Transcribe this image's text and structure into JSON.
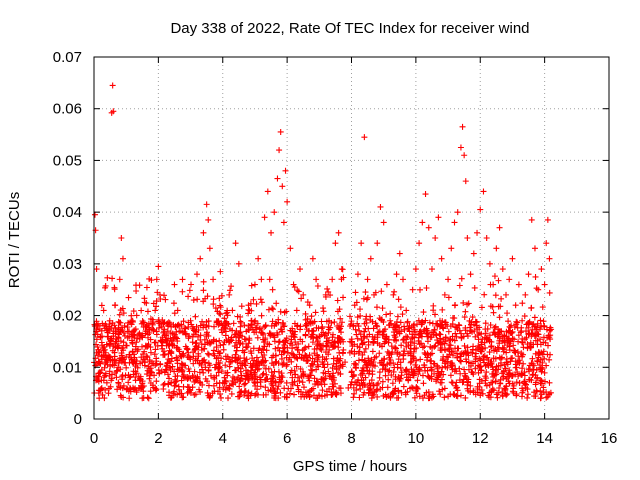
{
  "chart_data": {
    "type": "scatter",
    "title": "Day 338 of 2022, Rate Of TEC Index for receiver wind",
    "xlabel": "GPS time / hours",
    "ylabel": "ROTI / TECUs",
    "xlim": [
      0,
      16
    ],
    "ylim": [
      0,
      0.07
    ],
    "xticks": [
      0,
      2,
      4,
      6,
      8,
      10,
      12,
      14,
      16
    ],
    "yticks": [
      0,
      0.01,
      0.02,
      0.03,
      0.04,
      0.05,
      0.06,
      0.07
    ],
    "xtick_labels": [
      "0",
      "2",
      "4",
      "6",
      "8",
      "10",
      "12",
      "14",
      "16"
    ],
    "ytick_labels": [
      "0",
      "0.01",
      "0.02",
      "0.03",
      "0.04",
      "0.05",
      "0.06",
      "0.07"
    ],
    "grid": true,
    "marker": "+",
    "color": "#ff0000",
    "points": [
      [
        0.03,
        0.0395
      ],
      [
        0.05,
        0.0365
      ],
      [
        0.08,
        0.029
      ],
      [
        0.1,
        0.018
      ],
      [
        0.15,
        0.013
      ],
      [
        0.2,
        0.009
      ],
      [
        0.25,
        0.016
      ],
      [
        0.3,
        0.021
      ],
      [
        0.35,
        0.011
      ],
      [
        0.4,
        0.007
      ],
      [
        0.45,
        0.005
      ],
      [
        0.5,
        0.012
      ],
      [
        0.55,
        0.0592
      ],
      [
        0.58,
        0.0645
      ],
      [
        0.6,
        0.0595
      ],
      [
        0.65,
        0.022
      ],
      [
        0.7,
        0.015
      ],
      [
        0.75,
        0.01
      ],
      [
        0.8,
        0.027
      ],
      [
        0.85,
        0.035
      ],
      [
        0.9,
        0.031
      ],
      [
        0.95,
        0.018
      ],
      [
        1.0,
        0.012
      ],
      [
        1.1,
        0.008
      ],
      [
        1.2,
        0.019
      ],
      [
        1.3,
        0.014
      ],
      [
        1.4,
        0.006
      ],
      [
        1.5,
        0.011
      ],
      [
        1.6,
        0.017
      ],
      [
        1.7,
        0.004
      ],
      [
        1.8,
        0.009
      ],
      [
        1.9,
        0.021
      ],
      [
        1.95,
        0.027
      ],
      [
        2.0,
        0.0295
      ],
      [
        2.05,
        0.024
      ],
      [
        2.1,
        0.015
      ],
      [
        2.2,
        0.009
      ],
      [
        2.3,
        0.018
      ],
      [
        2.4,
        0.013
      ],
      [
        2.5,
        0.026
      ],
      [
        2.6,
        0.021
      ],
      [
        2.7,
        0.017
      ],
      [
        2.8,
        0.008
      ],
      [
        2.9,
        0.012
      ],
      [
        3.0,
        0.019
      ],
      [
        3.1,
        0.023
      ],
      [
        3.2,
        0.028
      ],
      [
        3.3,
        0.031
      ],
      [
        3.4,
        0.036
      ],
      [
        3.5,
        0.0415
      ],
      [
        3.55,
        0.0385
      ],
      [
        3.6,
        0.033
      ],
      [
        3.7,
        0.027
      ],
      [
        3.8,
        0.015
      ],
      [
        3.9,
        0.01
      ],
      [
        4.0,
        0.007
      ],
      [
        4.1,
        0.018
      ],
      [
        4.2,
        0.024
      ],
      [
        4.3,
        0.021
      ],
      [
        4.4,
        0.034
      ],
      [
        4.5,
        0.03
      ],
      [
        4.6,
        0.016
      ],
      [
        4.7,
        0.011
      ],
      [
        4.8,
        0.022
      ],
      [
        4.9,
        0.019
      ],
      [
        5.0,
        0.026
      ],
      [
        5.1,
        0.031
      ],
      [
        5.2,
        0.027
      ],
      [
        5.3,
        0.039
      ],
      [
        5.4,
        0.044
      ],
      [
        5.5,
        0.036
      ],
      [
        5.6,
        0.04
      ],
      [
        5.7,
        0.0465
      ],
      [
        5.75,
        0.052
      ],
      [
        5.8,
        0.0555
      ],
      [
        5.85,
        0.045
      ],
      [
        5.9,
        0.038
      ],
      [
        5.95,
        0.048
      ],
      [
        6.0,
        0.042
      ],
      [
        6.1,
        0.033
      ],
      [
        6.2,
        0.026
      ],
      [
        6.3,
        0.021
      ],
      [
        6.4,
        0.029
      ],
      [
        6.5,
        0.024
      ],
      [
        6.6,
        0.018
      ],
      [
        6.7,
        0.022
      ],
      [
        6.8,
        0.031
      ],
      [
        6.9,
        0.027
      ],
      [
        7.0,
        0.016
      ],
      [
        7.1,
        0.012
      ],
      [
        7.2,
        0.024
      ],
      [
        7.3,
        0.019
      ],
      [
        7.4,
        0.027
      ],
      [
        7.5,
        0.034
      ],
      [
        7.6,
        0.036
      ],
      [
        7.7,
        0.029
      ],
      [
        7.8,
        0.011
      ],
      [
        7.9,
        0.006
      ],
      [
        8.0,
        0.009
      ],
      [
        8.1,
        0.022
      ],
      [
        8.2,
        0.028
      ],
      [
        8.3,
        0.034
      ],
      [
        8.4,
        0.0545
      ],
      [
        8.5,
        0.027
      ],
      [
        8.6,
        0.031
      ],
      [
        8.7,
        0.024
      ],
      [
        8.8,
        0.034
      ],
      [
        8.9,
        0.041
      ],
      [
        9.0,
        0.038
      ],
      [
        9.1,
        0.026
      ],
      [
        9.2,
        0.019
      ],
      [
        9.3,
        0.024
      ],
      [
        9.4,
        0.028
      ],
      [
        9.5,
        0.032
      ],
      [
        9.6,
        0.027
      ],
      [
        9.7,
        0.021
      ],
      [
        9.8,
        0.018
      ],
      [
        9.9,
        0.025
      ],
      [
        10.0,
        0.029
      ],
      [
        10.1,
        0.034
      ],
      [
        10.2,
        0.038
      ],
      [
        10.3,
        0.0435
      ],
      [
        10.4,
        0.037
      ],
      [
        10.5,
        0.029
      ],
      [
        10.6,
        0.035
      ],
      [
        10.7,
        0.039
      ],
      [
        10.8,
        0.031
      ],
      [
        10.9,
        0.024
      ],
      [
        11.0,
        0.027
      ],
      [
        11.1,
        0.033
      ],
      [
        11.2,
        0.038
      ],
      [
        11.3,
        0.04
      ],
      [
        11.4,
        0.0525
      ],
      [
        11.45,
        0.0565
      ],
      [
        11.5,
        0.051
      ],
      [
        11.55,
        0.046
      ],
      [
        11.6,
        0.035
      ],
      [
        11.7,
        0.028
      ],
      [
        11.8,
        0.032
      ],
      [
        11.9,
        0.036
      ],
      [
        12.0,
        0.0405
      ],
      [
        12.1,
        0.044
      ],
      [
        12.2,
        0.035
      ],
      [
        12.3,
        0.03
      ],
      [
        12.4,
        0.026
      ],
      [
        12.5,
        0.033
      ],
      [
        12.6,
        0.037
      ],
      [
        12.7,
        0.029
      ],
      [
        12.8,
        0.024
      ],
      [
        12.9,
        0.027
      ],
      [
        13.0,
        0.031
      ],
      [
        13.1,
        0.022
      ],
      [
        13.2,
        0.026
      ],
      [
        13.3,
        0.019
      ],
      [
        13.4,
        0.024
      ],
      [
        13.5,
        0.028
      ],
      [
        13.6,
        0.0385
      ],
      [
        13.7,
        0.033
      ],
      [
        13.8,
        0.025
      ],
      [
        13.9,
        0.029
      ],
      [
        14.0,
        0.026
      ],
      [
        14.05,
        0.034
      ],
      [
        14.1,
        0.0385
      ],
      [
        14.15,
        0.031
      ]
    ],
    "band": {
      "description_free_seed": 338,
      "count": 2600
    }
  }
}
